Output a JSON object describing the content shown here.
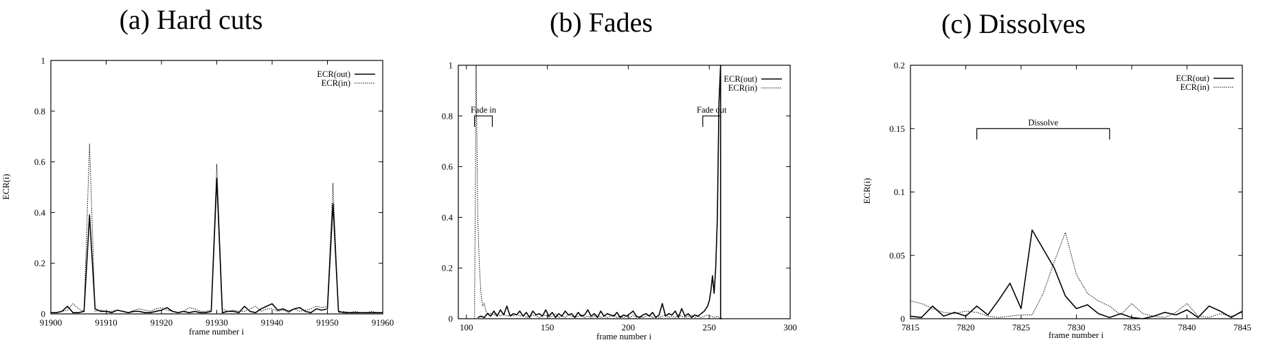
{
  "chart_data": [
    {
      "type": "line",
      "title": "(a) Hard cuts",
      "xlabel": "frame number i",
      "ylabel": "ECR(i)",
      "xlim": [
        91900,
        91960
      ],
      "ylim": [
        0,
        1
      ],
      "xticks": [
        91900,
        91910,
        91920,
        91930,
        91940,
        91950,
        91960
      ],
      "yticks": [
        0,
        0.2,
        0.4,
        0.6,
        0.8,
        1
      ],
      "ytick_labels": [
        "0",
        "0.2",
        "0.4",
        "0.6",
        "0.8",
        "1"
      ],
      "legend_position": "top-right",
      "grid": false,
      "annotations": [],
      "series": [
        {
          "name": "ECR(out)",
          "style": "solid",
          "x": [
            91900,
            91901,
            91902,
            91903,
            91904,
            91905,
            91906,
            91907,
            91908,
            91909,
            91910,
            91911,
            91912,
            91913,
            91914,
            91915,
            91916,
            91917,
            91918,
            91919,
            91920,
            91921,
            91922,
            91923,
            91924,
            91925,
            91926,
            91927,
            91928,
            91929,
            91930,
            91931,
            91932,
            91933,
            91934,
            91935,
            91936,
            91937,
            91938,
            91939,
            91940,
            91941,
            91942,
            91943,
            91944,
            91945,
            91946,
            91947,
            91948,
            91949,
            91950,
            91951,
            91952,
            91953,
            91954,
            91955,
            91956,
            91957,
            91958,
            91959,
            91960
          ],
          "y": [
            0.005,
            0.005,
            0.01,
            0.03,
            0.005,
            0.005,
            0.01,
            0.39,
            0.02,
            0.01,
            0.01,
            0.005,
            0.015,
            0.01,
            0.005,
            0.01,
            0.01,
            0.005,
            0.005,
            0.01,
            0.015,
            0.025,
            0.01,
            0.005,
            0.01,
            0.005,
            0.01,
            0.005,
            0.005,
            0.01,
            0.535,
            0.005,
            0.01,
            0.01,
            0.005,
            0.03,
            0.01,
            0.005,
            0.02,
            0.03,
            0.04,
            0.015,
            0.02,
            0.01,
            0.02,
            0.025,
            0.01,
            0.005,
            0.02,
            0.015,
            0.02,
            0.435,
            0.01,
            0.005,
            0.005,
            0.005,
            0.005,
            0.005,
            0.005,
            0.005,
            0.005
          ]
        },
        {
          "name": "ECR(in)",
          "style": "dotted",
          "x": [
            91900,
            91901,
            91902,
            91903,
            91904,
            91905,
            91906,
            91907,
            91908,
            91909,
            91910,
            91911,
            91912,
            91913,
            91914,
            91915,
            91916,
            91917,
            91918,
            91919,
            91920,
            91921,
            91922,
            91923,
            91924,
            91925,
            91926,
            91927,
            91928,
            91929,
            91930,
            91931,
            91932,
            91933,
            91934,
            91935,
            91936,
            91937,
            91938,
            91939,
            91940,
            91941,
            91942,
            91943,
            91944,
            91945,
            91946,
            91947,
            91948,
            91949,
            91950,
            91951,
            91952,
            91953,
            91954,
            91955,
            91956,
            91957,
            91958,
            91959,
            91960
          ],
          "y": [
            0.005,
            0.005,
            0.01,
            0.015,
            0.04,
            0.02,
            0.01,
            0.67,
            0.01,
            0.015,
            0.01,
            0.01,
            0.015,
            0.01,
            0.005,
            0.015,
            0.02,
            0.015,
            0.01,
            0.02,
            0.025,
            0.015,
            0.01,
            0.005,
            0.01,
            0.025,
            0.02,
            0.01,
            0.01,
            0.015,
            0.59,
            0.02,
            0.01,
            0.015,
            0.01,
            0.01,
            0.02,
            0.03,
            0.01,
            0.02,
            0.02,
            0.01,
            0.015,
            0.005,
            0.02,
            0.01,
            0.015,
            0.02,
            0.03,
            0.025,
            0.03,
            0.515,
            0.005,
            0.01,
            0.005,
            0.01,
            0.005,
            0.005,
            0.01,
            0.005,
            0.005
          ]
        }
      ]
    },
    {
      "type": "line",
      "title": "(b) Fades",
      "xlabel": "frame number i",
      "ylabel": "",
      "xlim": [
        95,
        300
      ],
      "ylim": [
        0,
        1
      ],
      "xticks": [
        100,
        150,
        200,
        250,
        300
      ],
      "yticks": [
        0,
        0.2,
        0.4,
        0.6,
        0.8,
        1
      ],
      "ytick_labels": [
        "0",
        "0.2",
        "0.4",
        "0.6",
        "0.8",
        "1"
      ],
      "legend_position": "top-right",
      "grid": false,
      "annotations": [
        {
          "text": "Fade in",
          "x_start": 105,
          "x_end": 116,
          "y": 0.8
        },
        {
          "text": "Fade out",
          "x_start": 246,
          "x_end": 257,
          "y": 0.8
        }
      ],
      "series": [
        {
          "name": "ECR(out)",
          "style": "solid",
          "x": [
            107,
            109,
            111,
            113,
            115,
            117,
            119,
            121,
            123,
            125,
            127,
            129,
            131,
            133,
            135,
            137,
            139,
            141,
            143,
            145,
            147,
            149,
            151,
            153,
            155,
            157,
            159,
            161,
            163,
            165,
            167,
            169,
            171,
            173,
            175,
            177,
            179,
            181,
            183,
            185,
            187,
            189,
            191,
            193,
            195,
            197,
            199,
            201,
            203,
            205,
            207,
            209,
            211,
            213,
            215,
            217,
            219,
            221,
            223,
            225,
            227,
            229,
            231,
            233,
            235,
            237,
            239,
            241,
            243,
            245,
            247,
            249,
            250,
            251,
            252,
            253,
            254,
            255,
            256,
            257,
            257,
            258
          ],
          "y": [
            0.005,
            0.01,
            0.005,
            0.02,
            0.01,
            0.03,
            0.01,
            0.035,
            0.015,
            0.05,
            0.01,
            0.02,
            0.015,
            0.03,
            0.01,
            0.025,
            0.005,
            0.03,
            0.015,
            0.02,
            0.01,
            0.035,
            0.01,
            0.025,
            0.005,
            0.02,
            0.01,
            0.03,
            0.015,
            0.02,
            0.005,
            0.025,
            0.01,
            0.015,
            0.035,
            0.01,
            0.02,
            0.005,
            0.03,
            0.01,
            0.02,
            0.015,
            0.01,
            0.025,
            0.005,
            0.015,
            0.01,
            0.02,
            0.03,
            0.01,
            0.005,
            0.015,
            0.02,
            0.01,
            0.025,
            0.005,
            0.015,
            0.06,
            0.01,
            0.02,
            0.015,
            0.03,
            0.005,
            0.04,
            0.01,
            0.02,
            0.005,
            0.015,
            0.01,
            0.02,
            0.03,
            0.05,
            0.07,
            0.11,
            0.17,
            0.1,
            0.2,
            0.4,
            0.85,
            1.0,
            0.0,
            0.0
          ]
        },
        {
          "name": "ECR(in)",
          "style": "dotted",
          "x": [
            105,
            106,
            107,
            108,
            109,
            110,
            111,
            112,
            113,
            115,
            117,
            119,
            121,
            123,
            125,
            127,
            129,
            131,
            133,
            135,
            137,
            139,
            141,
            143,
            145,
            147,
            149,
            151,
            153,
            155,
            157,
            159,
            161,
            163,
            165,
            167,
            169,
            171,
            173,
            175,
            177,
            179,
            181,
            183,
            185,
            187,
            189,
            191,
            193,
            195,
            197,
            199,
            201,
            203,
            205,
            207,
            209,
            211,
            213,
            215,
            217,
            219,
            221,
            223,
            225,
            227,
            229,
            231,
            233,
            235,
            237,
            239,
            241,
            243,
            245,
            247,
            249,
            251,
            253,
            255,
            256,
            257
          ],
          "y": [
            0.0,
            1.0,
            0.4,
            0.21,
            0.1,
            0.05,
            0.06,
            0.03,
            0.02,
            0.02,
            0.015,
            0.02,
            0.01,
            0.02,
            0.01,
            0.015,
            0.01,
            0.02,
            0.01,
            0.015,
            0.005,
            0.01,
            0.015,
            0.01,
            0.005,
            0.01,
            0.015,
            0.005,
            0.01,
            0.02,
            0.005,
            0.01,
            0.005,
            0.015,
            0.01,
            0.005,
            0.01,
            0.015,
            0.005,
            0.01,
            0.005,
            0.01,
            0.015,
            0.005,
            0.01,
            0.005,
            0.01,
            0.015,
            0.005,
            0.01,
            0.005,
            0.01,
            0.005,
            0.015,
            0.005,
            0.01,
            0.005,
            0.01,
            0.015,
            0.005,
            0.01,
            0.005,
            0.01,
            0.015,
            0.005,
            0.01,
            0.005,
            0.015,
            0.01,
            0.005,
            0.01,
            0.015,
            0.005,
            0.01,
            0.005,
            0.01,
            0.015,
            0.01,
            0.005,
            0.01,
            0.005,
            0.0
          ]
        }
      ]
    },
    {
      "type": "line",
      "title": "(c) Dissolves",
      "xlabel": "frame number i",
      "ylabel": "ECR(i)",
      "xlim": [
        7815,
        7845
      ],
      "ylim": [
        0,
        0.2
      ],
      "xticks": [
        7815,
        7820,
        7825,
        7830,
        7835,
        7840,
        7845
      ],
      "yticks": [
        0,
        0.05,
        0.1,
        0.15,
        0.2
      ],
      "ytick_labels": [
        "0",
        "0.05",
        "0.1",
        "0.15",
        "0.2"
      ],
      "legend_position": "top-right",
      "grid": false,
      "annotations": [
        {
          "text": "Dissolve",
          "x_start": 7821,
          "x_end": 7833,
          "y": 0.15
        }
      ],
      "series": [
        {
          "name": "ECR(out)",
          "style": "solid",
          "x": [
            7815,
            7816,
            7817,
            7818,
            7819,
            7820,
            7821,
            7822,
            7823,
            7824,
            7825,
            7826,
            7827,
            7828,
            7829,
            7830,
            7831,
            7832,
            7833,
            7834,
            7835,
            7836,
            7837,
            7838,
            7839,
            7840,
            7841,
            7842,
            7843,
            7844,
            7845
          ],
          "y": [
            0.002,
            0.001,
            0.01,
            0.002,
            0.005,
            0.002,
            0.01,
            0.003,
            0.015,
            0.028,
            0.008,
            0.07,
            0.055,
            0.04,
            0.018,
            0.008,
            0.011,
            0.004,
            0.001,
            0.004,
            0.001,
            0.0,
            0.002,
            0.005,
            0.003,
            0.007,
            0.001,
            0.01,
            0.006,
            0.001,
            0.006
          ]
        },
        {
          "name": "ECR(in)",
          "style": "dotted",
          "x": [
            7815,
            7816,
            7817,
            7818,
            7819,
            7820,
            7821,
            7822,
            7823,
            7824,
            7825,
            7826,
            7827,
            7828,
            7829,
            7830,
            7831,
            7832,
            7833,
            7834,
            7835,
            7836,
            7837,
            7838,
            7839,
            7840,
            7841,
            7842,
            7843,
            7844,
            7845
          ],
          "y": [
            0.014,
            0.012,
            0.008,
            0.005,
            0.004,
            0.006,
            0.005,
            0.002,
            0.001,
            0.002,
            0.003,
            0.003,
            0.02,
            0.045,
            0.068,
            0.035,
            0.02,
            0.014,
            0.01,
            0.003,
            0.012,
            0.004,
            0.002,
            0.001,
            0.005,
            0.012,
            0.002,
            0.001,
            0.004,
            0.002,
            0.005
          ]
        }
      ]
    }
  ]
}
